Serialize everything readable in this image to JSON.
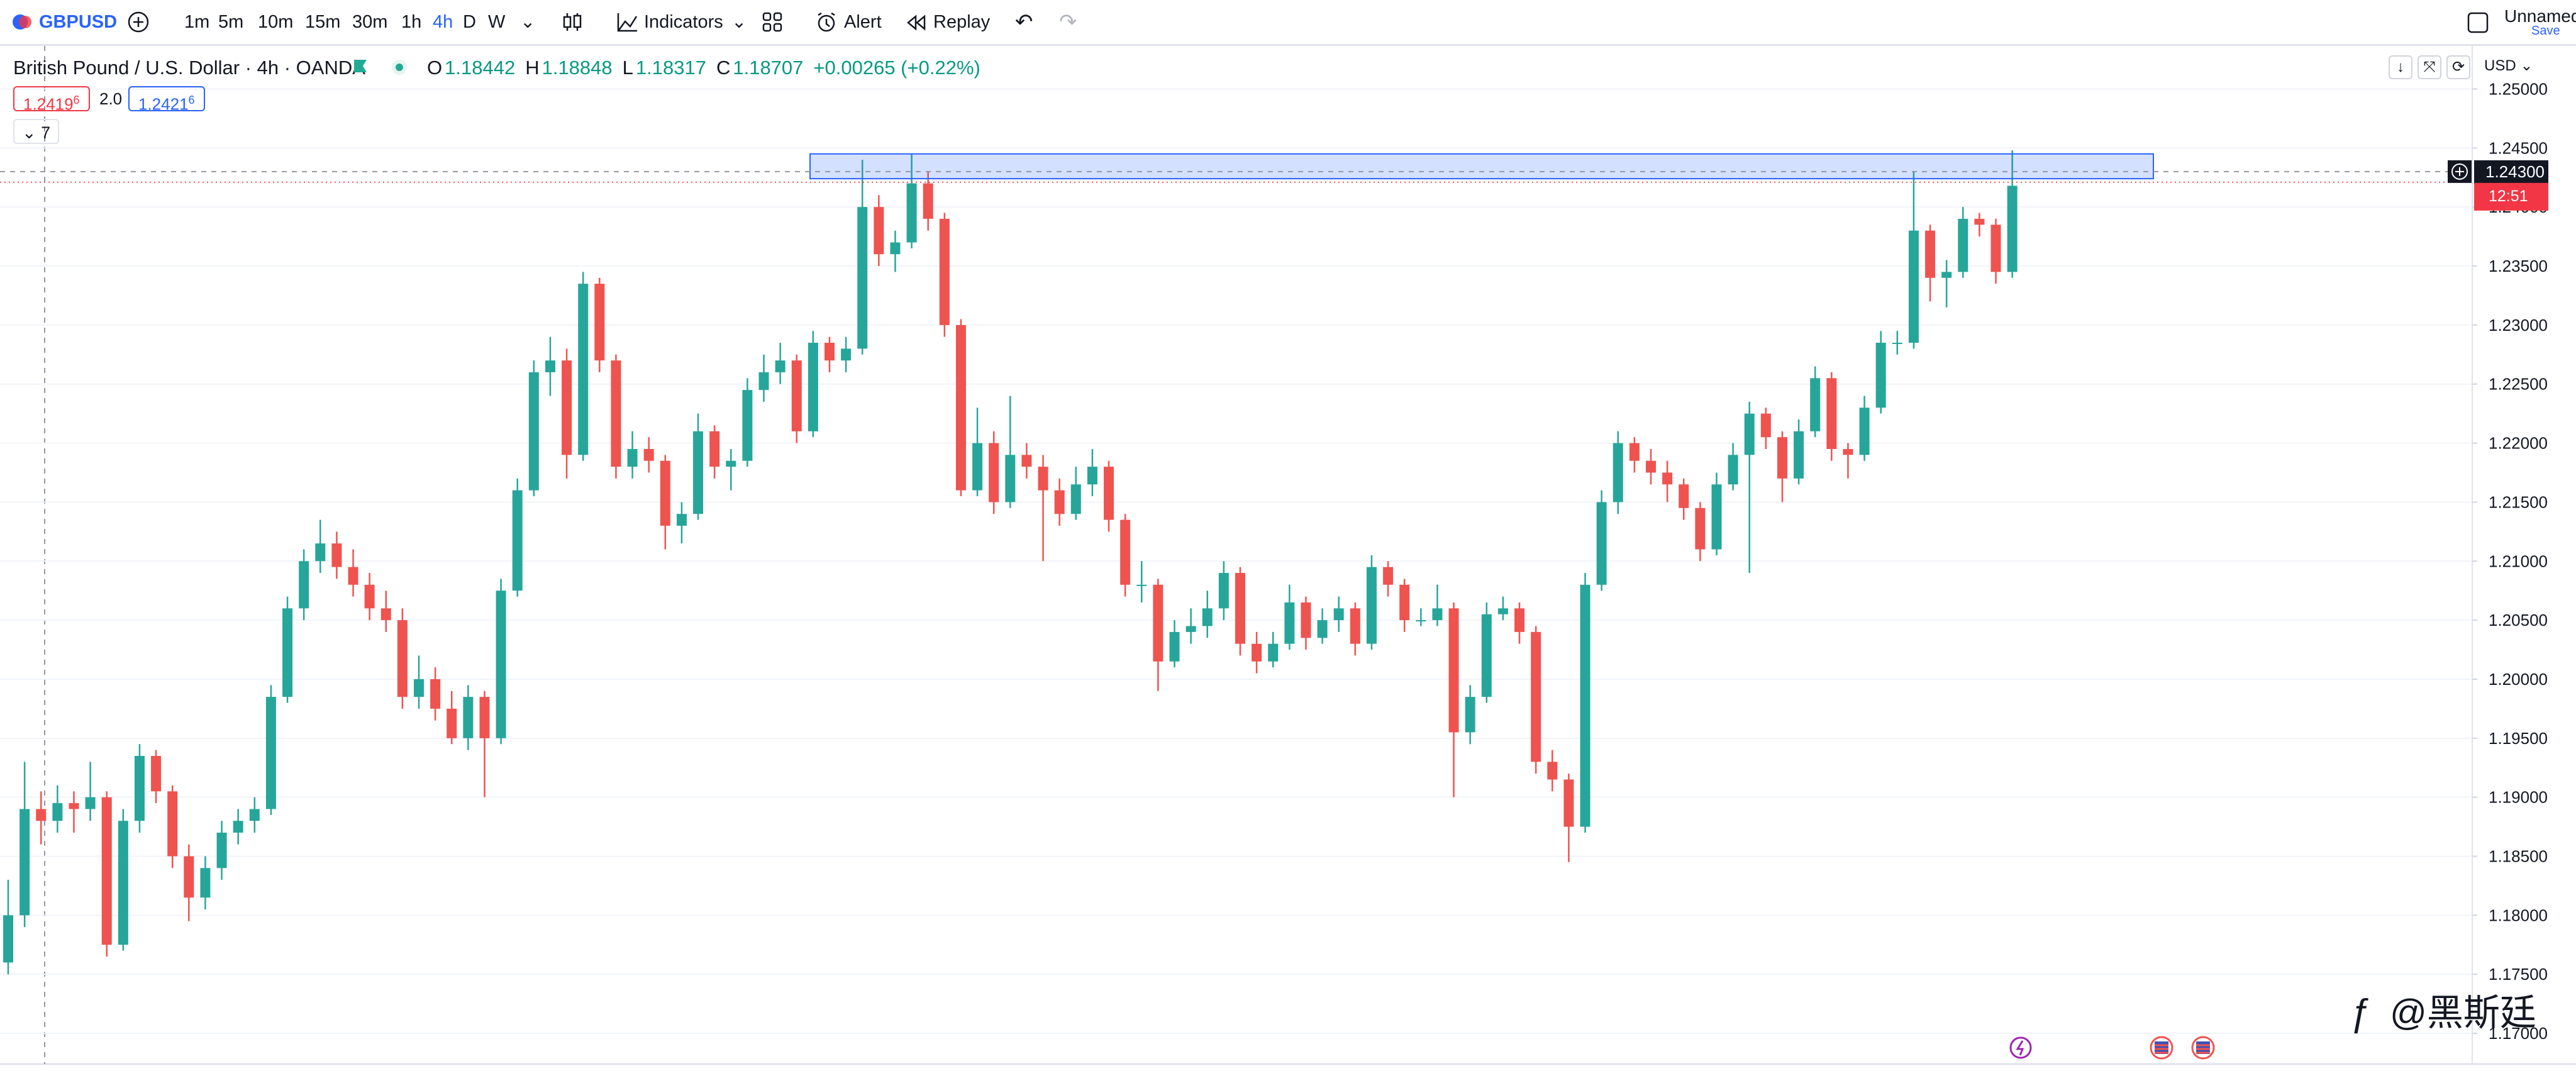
{
  "toolbar": {
    "symbol": "GBPUSD",
    "intervals": [
      "1m",
      "5m",
      "10m",
      "15m",
      "30m",
      "1h",
      "4h",
      "D",
      "W"
    ],
    "active_interval": "4h",
    "indicators": "Indicators",
    "alert": "Alert",
    "replay": "Replay",
    "layout_name": "Unnamed",
    "save": "Save"
  },
  "legend": {
    "title": "British Pound / U.S. Dollar · 4h · OANDA",
    "ohlc": [
      {
        "key": "O",
        "value": "1.18442"
      },
      {
        "key": "H",
        "value": "1.18848"
      },
      {
        "key": "L",
        "value": "1.18317"
      },
      {
        "key": "C",
        "value": "1.18707"
      }
    ],
    "change": "+0.00265 (+0.22%)"
  },
  "sell_price": {
    "main": "1.2419",
    "pip": "6"
  },
  "spread": "2.0",
  "buy_price": {
    "main": "1.2421",
    "pip": "6"
  },
  "indicators_count": "7",
  "currency": "USD",
  "watermark": "@黑斯廷",
  "chart_data": {
    "type": "candlestick",
    "up_color": "#26a69a",
    "down_color": "#ef5350",
    "grid": true,
    "ylim": [
      1.1675,
      1.2537
    ],
    "yticks": [
      {
        "value": 1.17,
        "label": "1.17000"
      },
      {
        "value": 1.175,
        "label": "1.17500"
      },
      {
        "value": 1.18,
        "label": "1.18000"
      },
      {
        "value": 1.185,
        "label": "1.18500"
      },
      {
        "value": 1.19,
        "label": "1.19000"
      },
      {
        "value": 1.195,
        "label": "1.19500"
      },
      {
        "value": 1.2,
        "label": "1.20000"
      },
      {
        "value": 1.205,
        "label": "1.20500"
      },
      {
        "value": 1.21,
        "label": "1.21000"
      },
      {
        "value": 1.215,
        "label": "1.21500"
      },
      {
        "value": 1.22,
        "label": "1.22000"
      },
      {
        "value": 1.225,
        "label": "1.22500"
      },
      {
        "value": 1.23,
        "label": "1.23000"
      },
      {
        "value": 1.235,
        "label": "1.23500"
      },
      {
        "value": 1.24,
        "label": "1.24000"
      },
      {
        "value": 1.245,
        "label": "1.24500"
      },
      {
        "value": 1.25,
        "label": "1.25000"
      }
    ],
    "crosshair": {
      "value": 1.243,
      "label": "1.24300"
    },
    "price_line": 1.2421,
    "countdown": "12:51",
    "rectangle": [
      1.2445,
      1.2424
    ],
    "ohlc": [
      [
        1.176,
        1.183,
        1.175,
        1.18
      ],
      [
        1.18,
        1.193,
        1.179,
        1.189
      ],
      [
        1.189,
        1.1905,
        1.186,
        1.188
      ],
      [
        1.188,
        1.191,
        1.187,
        1.1895
      ],
      [
        1.1895,
        1.1905,
        1.187,
        1.189
      ],
      [
        1.189,
        1.193,
        1.188,
        1.19
      ],
      [
        1.19,
        1.1905,
        1.1765,
        1.1775
      ],
      [
        1.1775,
        1.189,
        1.177,
        1.188
      ],
      [
        1.188,
        1.1945,
        1.187,
        1.1935
      ],
      [
        1.1935,
        1.194,
        1.1895,
        1.1905
      ],
      [
        1.1905,
        1.191,
        1.184,
        1.185
      ],
      [
        1.185,
        1.186,
        1.1795,
        1.1815
      ],
      [
        1.1815,
        1.185,
        1.1805,
        1.184
      ],
      [
        1.184,
        1.188,
        1.183,
        1.187
      ],
      [
        1.187,
        1.189,
        1.186,
        1.188
      ],
      [
        1.188,
        1.19,
        1.187,
        1.189
      ],
      [
        1.189,
        1.1995,
        1.1885,
        1.1985
      ],
      [
        1.1985,
        1.207,
        1.198,
        1.206
      ],
      [
        1.206,
        1.211,
        1.205,
        1.21
      ],
      [
        1.21,
        1.2135,
        1.209,
        1.2115
      ],
      [
        1.2115,
        1.2125,
        1.2085,
        1.2095
      ],
      [
        1.2095,
        1.211,
        1.207,
        1.208
      ],
      [
        1.208,
        1.209,
        1.205,
        1.206
      ],
      [
        1.206,
        1.2075,
        1.204,
        1.205
      ],
      [
        1.205,
        1.206,
        1.1975,
        1.1985
      ],
      [
        1.1985,
        1.202,
        1.1975,
        1.2
      ],
      [
        1.2,
        1.201,
        1.1965,
        1.1975
      ],
      [
        1.1975,
        1.199,
        1.1945,
        1.195
      ],
      [
        1.195,
        1.1995,
        1.194,
        1.1985
      ],
      [
        1.1985,
        1.199,
        1.19,
        1.195
      ],
      [
        1.195,
        1.2085,
        1.1945,
        1.2075
      ],
      [
        1.2075,
        1.217,
        1.207,
        1.216
      ],
      [
        1.216,
        1.227,
        1.2155,
        1.226
      ],
      [
        1.226,
        1.229,
        1.224,
        1.227
      ],
      [
        1.227,
        1.228,
        1.217,
        1.219
      ],
      [
        1.219,
        1.2345,
        1.2185,
        1.2335
      ],
      [
        1.2335,
        1.234,
        1.226,
        1.227
      ],
      [
        1.227,
        1.2275,
        1.217,
        1.218
      ],
      [
        1.218,
        1.221,
        1.217,
        1.2195
      ],
      [
        1.2195,
        1.2205,
        1.2175,
        1.2185
      ],
      [
        1.2185,
        1.219,
        1.211,
        1.213
      ],
      [
        1.213,
        1.215,
        1.2115,
        1.214
      ],
      [
        1.214,
        1.2225,
        1.2135,
        1.221
      ],
      [
        1.221,
        1.2215,
        1.217,
        1.218
      ],
      [
        1.218,
        1.2195,
        1.216,
        1.2185
      ],
      [
        1.2185,
        1.2255,
        1.218,
        1.2245
      ],
      [
        1.2245,
        1.2275,
        1.2235,
        1.226
      ],
      [
        1.226,
        1.2285,
        1.225,
        1.227
      ],
      [
        1.227,
        1.2275,
        1.22,
        1.221
      ],
      [
        1.221,
        1.2295,
        1.2205,
        1.2285
      ],
      [
        1.2285,
        1.229,
        1.226,
        1.227
      ],
      [
        1.227,
        1.229,
        1.226,
        1.228
      ],
      [
        1.228,
        1.244,
        1.2275,
        1.24
      ],
      [
        1.24,
        1.241,
        1.235,
        1.236
      ],
      [
        1.236,
        1.238,
        1.2345,
        1.237
      ],
      [
        1.237,
        1.2445,
        1.2365,
        1.242
      ],
      [
        1.242,
        1.243,
        1.238,
        1.239
      ],
      [
        1.239,
        1.2395,
        1.229,
        1.23
      ],
      [
        1.23,
        1.2305,
        1.2155,
        1.216
      ],
      [
        1.216,
        1.223,
        1.2155,
        1.22
      ],
      [
        1.22,
        1.221,
        1.214,
        1.215
      ],
      [
        1.215,
        1.224,
        1.2145,
        1.219
      ],
      [
        1.219,
        1.22,
        1.217,
        1.218
      ],
      [
        1.218,
        1.219,
        1.21,
        1.216
      ],
      [
        1.216,
        1.217,
        1.213,
        1.214
      ],
      [
        1.214,
        1.218,
        1.2135,
        1.2165
      ],
      [
        1.2165,
        1.2195,
        1.2155,
        1.218
      ],
      [
        1.218,
        1.2185,
        1.2125,
        1.2135
      ],
      [
        1.2135,
        1.214,
        1.207,
        1.208
      ],
      [
        1.208,
        1.21,
        1.2065,
        1.208
      ],
      [
        1.208,
        1.2085,
        1.199,
        1.2015
      ],
      [
        1.2015,
        1.205,
        1.201,
        1.204
      ],
      [
        1.204,
        1.206,
        1.203,
        1.2045
      ],
      [
        1.2045,
        1.2075,
        1.2035,
        1.206
      ],
      [
        1.206,
        1.21,
        1.205,
        1.209
      ],
      [
        1.209,
        1.2095,
        1.202,
        1.203
      ],
      [
        1.203,
        1.204,
        1.2005,
        1.2015
      ],
      [
        1.2015,
        1.204,
        1.201,
        1.203
      ],
      [
        1.203,
        1.208,
        1.2025,
        1.2065
      ],
      [
        1.2065,
        1.207,
        1.2025,
        1.2035
      ],
      [
        1.2035,
        1.206,
        1.203,
        1.205
      ],
      [
        1.205,
        1.207,
        1.204,
        1.206
      ],
      [
        1.206,
        1.2065,
        1.202,
        1.203
      ],
      [
        1.203,
        1.2105,
        1.2025,
        1.2095
      ],
      [
        1.2095,
        1.21,
        1.207,
        1.208
      ],
      [
        1.208,
        1.2085,
        1.204,
        1.205
      ],
      [
        1.205,
        1.206,
        1.2045,
        1.205
      ],
      [
        1.205,
        1.208,
        1.2045,
        1.206
      ],
      [
        1.206,
        1.2065,
        1.19,
        1.1955
      ],
      [
        1.1955,
        1.1995,
        1.1945,
        1.1985
      ],
      [
        1.1985,
        1.2065,
        1.198,
        1.2055
      ],
      [
        1.2055,
        1.207,
        1.205,
        1.206
      ],
      [
        1.206,
        1.2065,
        1.203,
        1.204
      ],
      [
        1.204,
        1.2045,
        1.192,
        1.193
      ],
      [
        1.193,
        1.194,
        1.1905,
        1.1915
      ],
      [
        1.1915,
        1.192,
        1.1845,
        1.1875
      ],
      [
        1.1875,
        1.209,
        1.187,
        1.208
      ],
      [
        1.208,
        1.216,
        1.2075,
        1.215
      ],
      [
        1.215,
        1.221,
        1.214,
        1.22
      ],
      [
        1.22,
        1.2205,
        1.2175,
        1.2185
      ],
      [
        1.2185,
        1.2195,
        1.2165,
        1.2175
      ],
      [
        1.2175,
        1.2185,
        1.215,
        1.2165
      ],
      [
        1.2165,
        1.217,
        1.2135,
        1.2145
      ],
      [
        1.2145,
        1.215,
        1.21,
        1.211
      ],
      [
        1.211,
        1.2175,
        1.2105,
        1.2165
      ],
      [
        1.2165,
        1.22,
        1.216,
        1.219
      ],
      [
        1.219,
        1.2235,
        1.209,
        1.2225
      ],
      [
        1.2225,
        1.223,
        1.2195,
        1.2205
      ],
      [
        1.2205,
        1.221,
        1.215,
        1.217
      ],
      [
        1.217,
        1.222,
        1.2165,
        1.221
      ],
      [
        1.221,
        1.2265,
        1.2205,
        1.2255
      ],
      [
        1.2255,
        1.226,
        1.2185,
        1.2195
      ],
      [
        1.2195,
        1.22,
        1.217,
        1.219
      ],
      [
        1.219,
        1.224,
        1.2185,
        1.223
      ],
      [
        1.223,
        1.2295,
        1.2225,
        1.2285
      ],
      [
        1.2285,
        1.2295,
        1.2275,
        1.2285
      ],
      [
        1.2285,
        1.243,
        1.228,
        1.238
      ],
      [
        1.238,
        1.2385,
        1.232,
        1.234
      ],
      [
        1.234,
        1.2355,
        1.2315,
        1.2345
      ],
      [
        1.2345,
        1.24,
        1.234,
        1.239
      ],
      [
        1.239,
        1.2395,
        1.2375,
        1.2385
      ],
      [
        1.2385,
        1.239,
        1.2335,
        1.2345
      ],
      [
        1.2345,
        1.2448,
        1.234,
        1.2418
      ]
    ]
  }
}
